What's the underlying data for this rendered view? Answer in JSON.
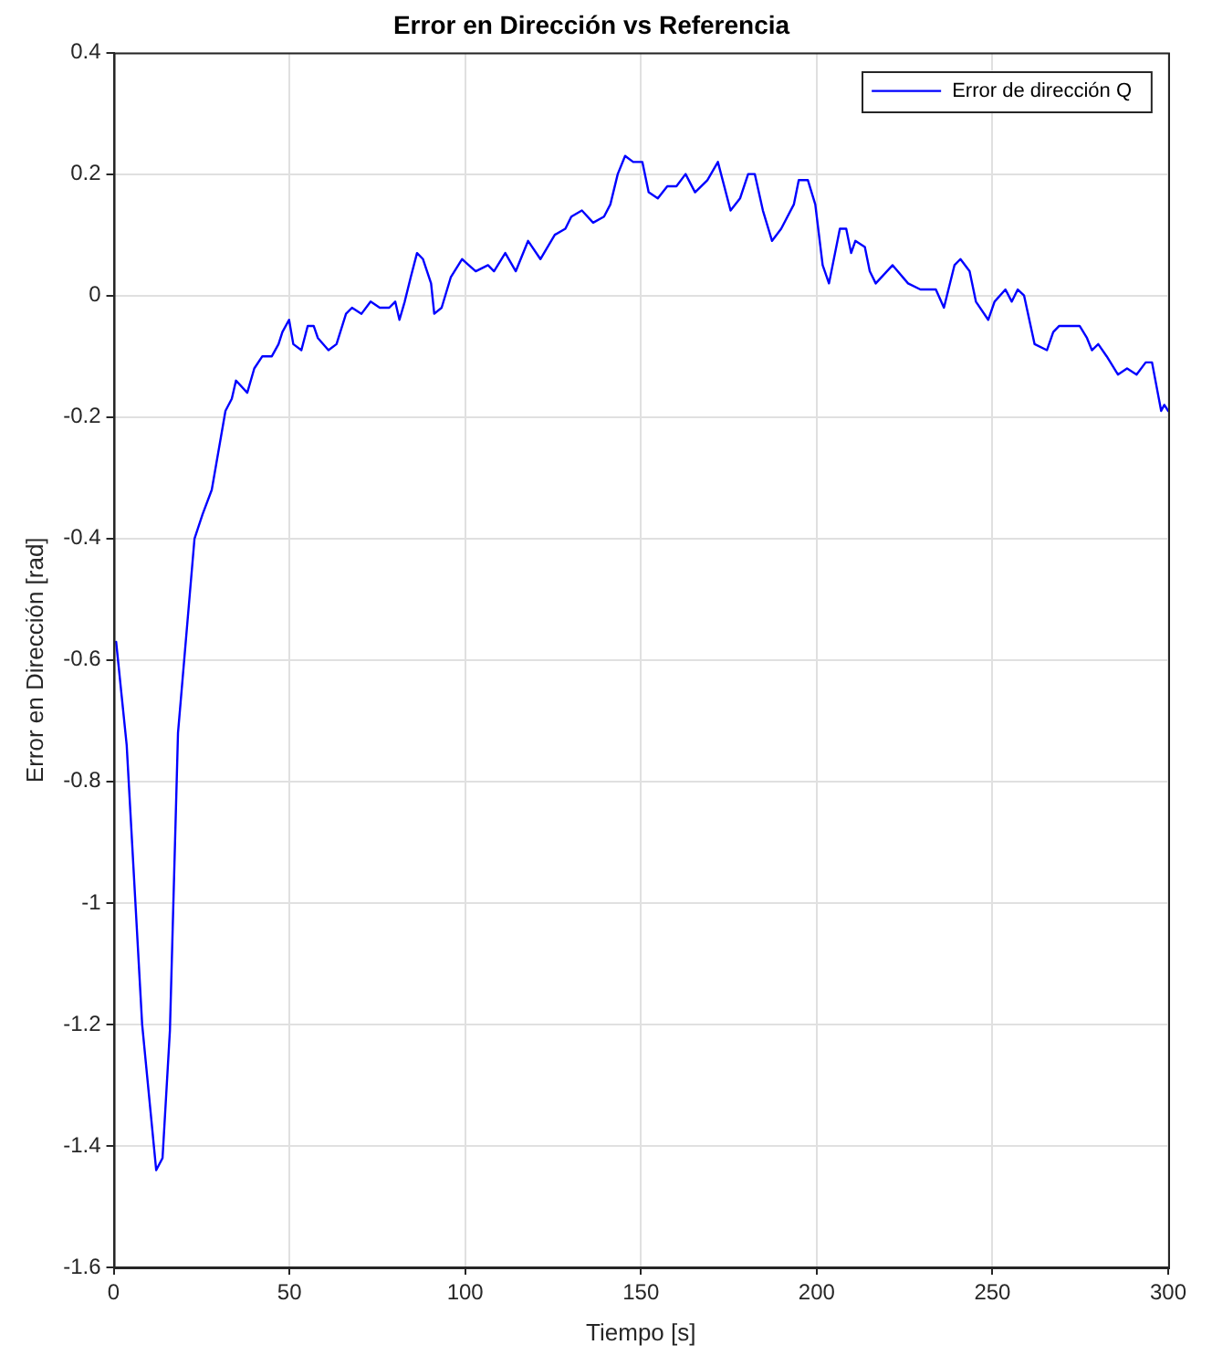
{
  "chart_data": {
    "type": "line",
    "title": "Error en Dirección vs Referencia",
    "xlabel": "Tiempo [s]",
    "ylabel": "Error en Dirección [rad]",
    "xlim": [
      0,
      300
    ],
    "xticks": [
      0,
      50,
      100,
      150,
      200,
      250,
      300
    ],
    "ylim": [
      -1.6,
      0.4
    ],
    "yticks": [
      -1.6,
      -1.4,
      -1.2,
      -1,
      -0.8,
      -0.6,
      -0.4,
      -0.2,
      0,
      0.2,
      0.4
    ],
    "grid": true,
    "legend": "top right",
    "marker": "none",
    "line_style": "solid",
    "series": [
      {
        "name": "Error de dirección Q",
        "color": "#0000ff",
        "x": [
          0.7,
          3.7,
          8.1,
          12.1,
          13.9,
          16,
          18.3,
          23,
          25.3,
          27.9,
          31.8,
          33.6,
          34.8,
          38,
          40,
          42.3,
          45,
          46.9,
          48,
          49.9,
          51.1,
          53.4,
          55.2,
          56.9,
          58.1,
          61.1,
          63.4,
          66.1,
          67.8,
          70.5,
          73.1,
          75.7,
          78.4,
          80.1,
          81.3,
          82.8,
          84.5,
          86.3,
          88,
          90.3,
          91.2,
          93.3,
          95.9,
          99.1,
          103,
          106.5,
          108.2,
          111.4,
          114.4,
          117.9,
          121.4,
          125.5,
          128.5,
          130.2,
          133.2,
          136.4,
          139.5,
          141.3,
          143.4,
          145.5,
          147.8,
          150.4,
          152.2,
          154.8,
          157.5,
          160.1,
          162.7,
          165.4,
          168.9,
          171.9,
          175.5,
          178.2,
          180.5,
          182.4,
          184.7,
          187.3,
          189.9,
          193.5,
          194.9,
          197.5,
          199.6,
          201.7,
          203.5,
          206.6,
          208.4,
          209.8,
          211,
          213.7,
          215.1,
          216.8,
          221.6,
          226,
          229.5,
          233.9,
          236.2,
          239.2,
          240.9,
          243.5,
          245.3,
          248.8,
          250.6,
          253.7,
          255.5,
          257.2,
          259,
          262,
          265.5,
          267.3,
          269,
          271.6,
          274.8,
          276.9,
          278.3,
          280.1,
          282.5,
          285.7,
          288.3,
          291,
          293.6,
          295.4,
          298,
          298.9,
          300
        ],
        "values": [
          -0.57,
          -0.74,
          -1.2,
          -1.44,
          -1.42,
          -1.21,
          -0.72,
          -0.4,
          -0.36,
          -0.32,
          -0.19,
          -0.17,
          -0.14,
          -0.16,
          -0.12,
          -0.1,
          -0.1,
          -0.08,
          -0.06,
          -0.04,
          -0.08,
          -0.09,
          -0.05,
          -0.05,
          -0.07,
          -0.09,
          -0.08,
          -0.03,
          -0.02,
          -0.03,
          -0.01,
          -0.02,
          -0.02,
          -0.01,
          -0.04,
          -0.01,
          0.03,
          0.07,
          0.06,
          0.02,
          -0.03,
          -0.02,
          0.03,
          0.06,
          0.04,
          0.05,
          0.04,
          0.07,
          0.04,
          0.09,
          0.06,
          0.1,
          0.11,
          0.13,
          0.14,
          0.12,
          0.13,
          0.15,
          0.2,
          0.23,
          0.22,
          0.22,
          0.17,
          0.16,
          0.18,
          0.18,
          0.2,
          0.17,
          0.19,
          0.22,
          0.14,
          0.16,
          0.2,
          0.2,
          0.14,
          0.09,
          0.11,
          0.15,
          0.19,
          0.19,
          0.15,
          0.05,
          0.02,
          0.11,
          0.11,
          0.07,
          0.09,
          0.08,
          0.04,
          0.02,
          0.05,
          0.02,
          0.01,
          0.01,
          -0.02,
          0.05,
          0.06,
          0.04,
          -0.01,
          -0.04,
          -0.01,
          0.01,
          -0.01,
          0.01,
          0,
          -0.08,
          -0.09,
          -0.06,
          -0.05,
          -0.05,
          -0.05,
          -0.07,
          -0.09,
          -0.08,
          -0.1,
          -0.13,
          -0.12,
          -0.13,
          -0.11,
          -0.11,
          -0.19,
          -0.18,
          -0.19
        ]
      }
    ]
  }
}
